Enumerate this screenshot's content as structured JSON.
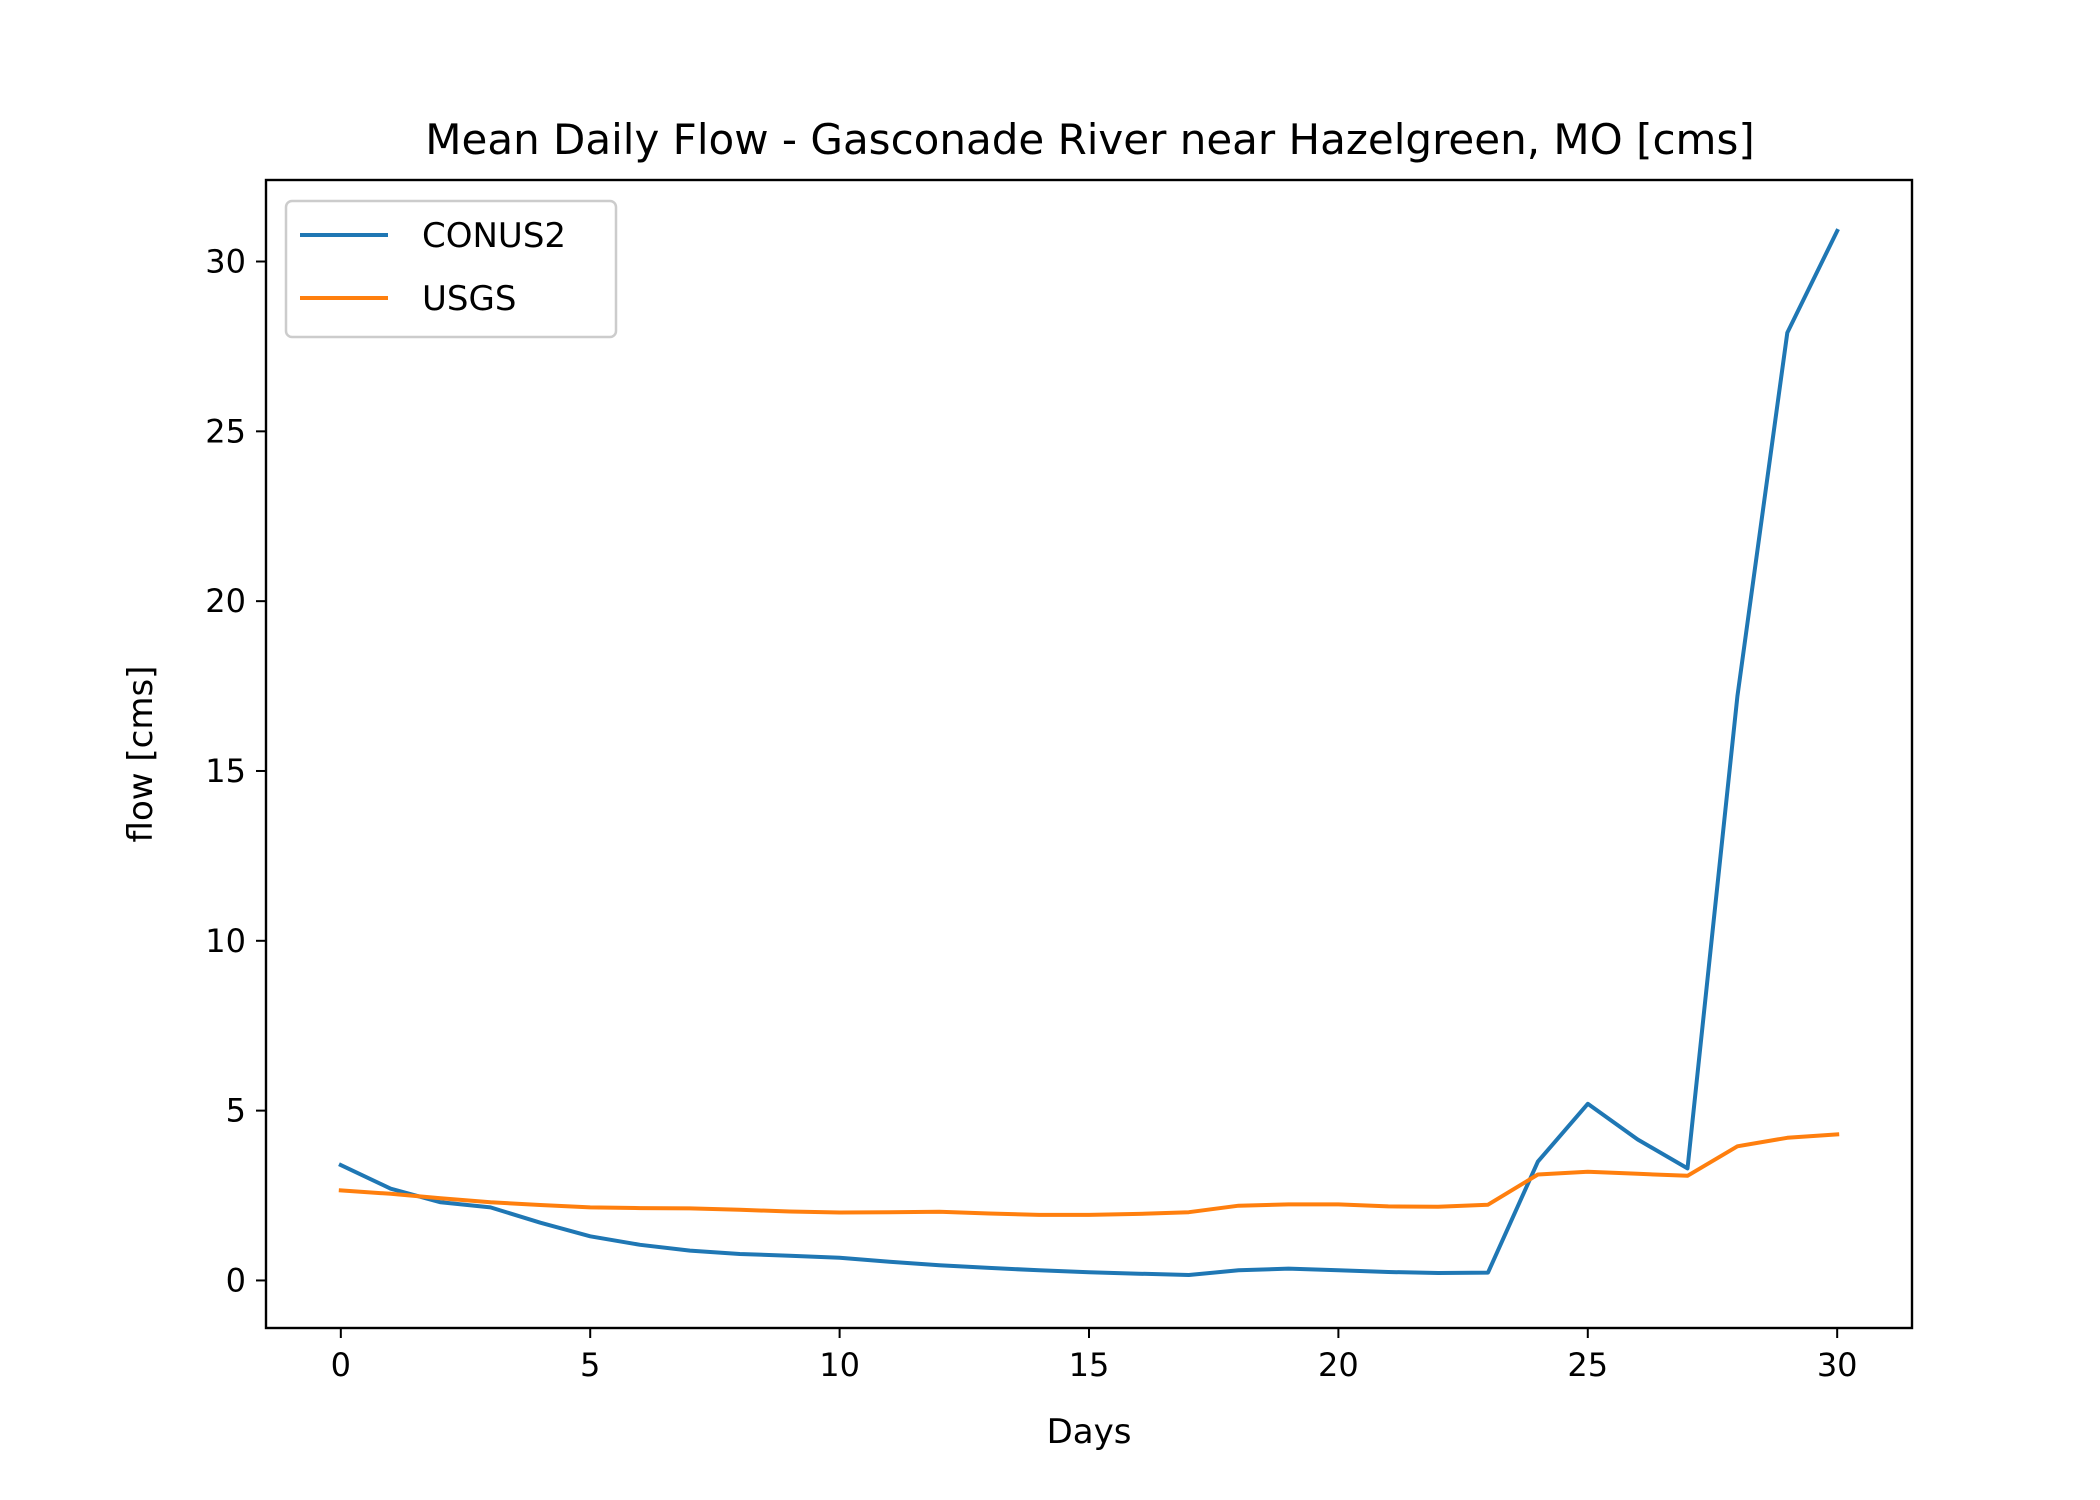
{
  "chart_data": {
    "type": "line",
    "title": "Mean Daily Flow - Gasconade River near Hazelgreen, MO [cms]",
    "xlabel": "Days",
    "ylabel": "flow [cms]",
    "xlim": [
      -1.5,
      31.5
    ],
    "ylim": [
      -1.4,
      32.4
    ],
    "xticks": [
      0,
      5,
      10,
      15,
      20,
      25,
      30
    ],
    "yticks": [
      0,
      5,
      10,
      15,
      20,
      25,
      30
    ],
    "grid": false,
    "legend_position": "top-left",
    "x": [
      0,
      1,
      2,
      3,
      4,
      5,
      6,
      7,
      8,
      9,
      10,
      11,
      12,
      13,
      14,
      15,
      16,
      17,
      18,
      19,
      20,
      21,
      22,
      23,
      24,
      25,
      26,
      27,
      28,
      29,
      30
    ],
    "series": [
      {
        "name": "CONUS2",
        "color": "#1f77b4",
        "values": [
          3.4,
          2.7,
          2.3,
          2.15,
          1.7,
          1.3,
          1.05,
          0.88,
          0.78,
          0.73,
          0.67,
          0.55,
          0.45,
          0.37,
          0.3,
          0.24,
          0.2,
          0.16,
          0.3,
          0.35,
          0.3,
          0.25,
          0.22,
          0.23,
          3.5,
          5.2,
          4.15,
          3.3,
          17.2,
          27.9,
          30.9
        ]
      },
      {
        "name": "USGS",
        "color": "#ff7f0e",
        "values": [
          2.65,
          2.55,
          2.42,
          2.3,
          2.22,
          2.15,
          2.13,
          2.12,
          2.08,
          2.03,
          2.0,
          2.01,
          2.02,
          1.97,
          1.93,
          1.93,
          1.96,
          2.01,
          2.2,
          2.24,
          2.24,
          2.18,
          2.17,
          2.23,
          3.12,
          3.2,
          3.14,
          3.08,
          3.95,
          4.2,
          4.3
        ]
      }
    ]
  }
}
